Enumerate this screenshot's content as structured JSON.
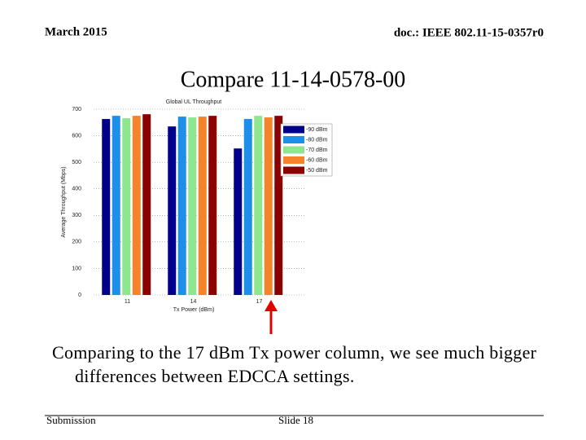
{
  "header": {
    "date": "March 2015",
    "doc": "doc.: IEEE 802.11-15-0357r0"
  },
  "slide_title": "Compare 11-14-0578-00",
  "body": "Comparing to the 17 dBm Tx power column, we see much bigger differences between EDCCA settings.",
  "footer": {
    "left": "Submission",
    "center": "Slide 18"
  },
  "chart_data": {
    "type": "bar",
    "title": "Global UL Throughput",
    "x_label": "Tx Power (dBm)",
    "y_label": "Average Throughput (Mbps)",
    "categories": [
      "11",
      "14",
      "17"
    ],
    "series": [
      {
        "name": "-90 dBm",
        "color": "#00008b",
        "values": [
          663,
          635,
          552
        ]
      },
      {
        "name": "-80 dBm",
        "color": "#1e8fe8",
        "values": [
          675,
          672,
          663
        ]
      },
      {
        "name": "-70 dBm",
        "color": "#8ee68e",
        "values": [
          666,
          669,
          675
        ]
      },
      {
        "name": "-60 dBm",
        "color": "#f5832a",
        "values": [
          675,
          672,
          669
        ]
      },
      {
        "name": "-50 dBm",
        "color": "#8b0000",
        "values": [
          681,
          675,
          675
        ]
      }
    ],
    "ylim": [
      0,
      700
    ],
    "yticks": [
      0,
      100,
      200,
      300,
      400,
      500,
      600,
      700
    ],
    "grid": true,
    "legend": "upper right"
  }
}
